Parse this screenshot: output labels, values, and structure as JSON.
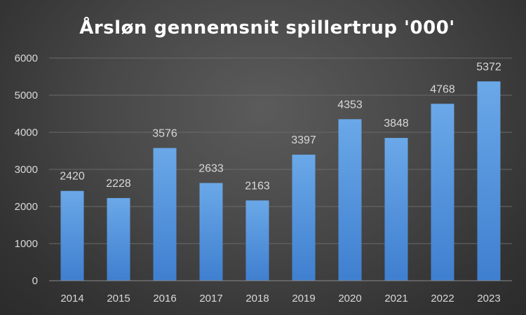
{
  "chart_data": {
    "type": "bar",
    "title": "Årsløn gennemsnit spillertrup '000'",
    "categories": [
      "2014",
      "2015",
      "2016",
      "2017",
      "2018",
      "2019",
      "2020",
      "2021",
      "2022",
      "2023"
    ],
    "values": [
      2420,
      2228,
      3576,
      2633,
      2163,
      3397,
      4353,
      3848,
      4768,
      5372
    ],
    "ylim": [
      0,
      6000
    ],
    "yticks": [
      0,
      1000,
      2000,
      3000,
      4000,
      5000,
      6000
    ],
    "grid": true,
    "data_labels": true,
    "colors": {
      "bar_top": "#6aa8e8",
      "bar_bottom": "#3f7fcf",
      "background_center": "#5b5b5b",
      "background_edge": "#2b2b2b"
    }
  }
}
